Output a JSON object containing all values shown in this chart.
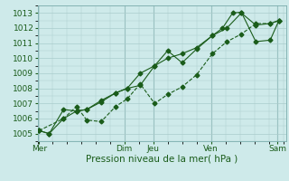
{
  "xlabel": "Pression niveau de la mer( hPa )",
  "background_color": "#ceeaea",
  "grid_color": "#aacccc",
  "line_color": "#1a5c1a",
  "ylim": [
    1004.5,
    1013.5
  ],
  "xlim": [
    0,
    8.6
  ],
  "day_labels": [
    "Mer",
    "",
    "Dim",
    "Jeu",
    "",
    "Ven",
    "",
    "Sam"
  ],
  "yticks": [
    1005,
    1006,
    1007,
    1008,
    1009,
    1010,
    1011,
    1012,
    1013
  ],
  "xtick_show": [
    0.05,
    3.0,
    4.0,
    6.0,
    8.3
  ],
  "xtick_labels": [
    "Mer",
    "Dim",
    "Jeu",
    "Ven",
    "Sam"
  ],
  "vline_positions": [
    3.0,
    4.0,
    6.0,
    8.3
  ],
  "series1_x": [
    0.05,
    0.4,
    0.9,
    1.35,
    1.7,
    2.2,
    2.7,
    3.1,
    3.55,
    4.05,
    4.5,
    5.0,
    5.5,
    6.05,
    6.55,
    7.05,
    7.55,
    8.05,
    8.35
  ],
  "series1_y": [
    1005.2,
    1005.0,
    1006.0,
    1006.5,
    1006.6,
    1007.1,
    1007.7,
    1008.0,
    1009.0,
    1009.5,
    1010.0,
    1010.3,
    1010.7,
    1011.5,
    1012.0,
    1013.0,
    1012.2,
    1012.3,
    1012.5
  ],
  "series2_x": [
    0.05,
    0.4,
    0.9,
    1.35,
    1.7,
    2.2,
    2.7,
    3.1,
    3.55,
    4.05,
    4.5,
    5.0,
    5.5,
    6.05,
    6.4,
    6.75,
    7.05,
    7.55,
    8.05,
    8.35
  ],
  "series2_y": [
    1005.2,
    1005.0,
    1006.6,
    1006.5,
    1006.6,
    1007.2,
    1007.7,
    1008.0,
    1008.2,
    1009.5,
    1010.5,
    1009.7,
    1010.6,
    1011.5,
    1012.0,
    1013.0,
    1013.05,
    1011.1,
    1011.2,
    1012.5
  ],
  "series3_x": [
    0.05,
    0.9,
    1.35,
    1.7,
    2.2,
    2.7,
    3.1,
    3.55,
    4.05,
    4.5,
    5.0,
    5.5,
    6.05,
    6.55,
    7.05,
    7.55,
    8.05,
    8.35
  ],
  "series3_y": [
    1005.2,
    1006.0,
    1006.8,
    1005.9,
    1005.8,
    1006.8,
    1007.3,
    1008.3,
    1007.0,
    1007.6,
    1008.1,
    1008.9,
    1010.3,
    1011.1,
    1011.6,
    1012.3,
    1012.3,
    1012.5
  ],
  "fontsize_tick": 6.5,
  "fontsize_xlabel": 7.5,
  "marker_size": 2.5,
  "linewidth": 0.8
}
